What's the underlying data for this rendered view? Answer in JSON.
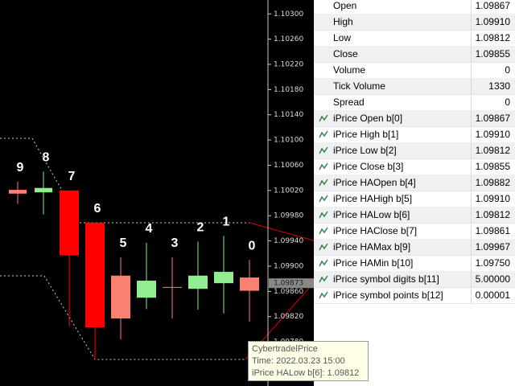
{
  "price_axis": {
    "ylim": [
      1.0971,
      1.10322
    ],
    "ticks": [
      {
        "value": 1.103,
        "label": "1.10300"
      },
      {
        "value": 1.1026,
        "label": "1.10260"
      },
      {
        "value": 1.1022,
        "label": "1.10220"
      },
      {
        "value": 1.1018,
        "label": "1.10180"
      },
      {
        "value": 1.1014,
        "label": "1.10140"
      },
      {
        "value": 1.101,
        "label": "1.10100"
      },
      {
        "value": 1.1006,
        "label": "1.10060"
      },
      {
        "value": 1.1002,
        "label": "1.10020"
      },
      {
        "value": 1.0998,
        "label": "1.09980"
      },
      {
        "value": 1.0994,
        "label": "1.09940"
      },
      {
        "value": 1.099,
        "label": "1.09900"
      },
      {
        "value": 1.0986,
        "label": "1.09860"
      },
      {
        "value": 1.0982,
        "label": "1.09820"
      },
      {
        "value": 1.0978,
        "label": "1.09780"
      }
    ],
    "current_price": {
      "value": 1.09873,
      "label": "1.09873"
    }
  },
  "candles": [
    {
      "label": "9",
      "open": 1.10021,
      "high": 1.10034,
      "low": 1.09999,
      "close": 1.10015
    },
    {
      "label": "8",
      "open": 1.10017,
      "high": 1.1005,
      "low": 1.09982,
      "close": 1.10024
    },
    {
      "label": "7",
      "open": 1.1002,
      "high": 1.1002,
      "low": 1.09804,
      "close": 1.09917
    },
    {
      "label": "6",
      "open": 1.09969,
      "high": 1.09969,
      "low": 1.09752,
      "close": 1.09803
    },
    {
      "label": "5",
      "open": 1.09885,
      "high": 1.09914,
      "low": 1.09784,
      "close": 1.09817
    },
    {
      "label": "4",
      "open": 1.0985,
      "high": 1.09937,
      "low": 1.09832,
      "close": 1.09877
    },
    {
      "label": "3",
      "open": 1.09867,
      "high": 1.09914,
      "low": 1.09817,
      "close": 1.09866
    },
    {
      "label": "2",
      "open": 1.09864,
      "high": 1.09939,
      "low": 1.09831,
      "close": 1.09885
    },
    {
      "label": "1",
      "open": 1.09873,
      "high": 1.09948,
      "low": 1.09825,
      "close": 1.09891
    },
    {
      "label": "0",
      "open": 1.09882,
      "high": 1.0991,
      "low": 1.09812,
      "close": 1.09861
    }
  ],
  "data_window": {
    "rows": [
      [
        "Open",
        "1.09867"
      ],
      [
        "High",
        "1.09910"
      ],
      [
        "Low",
        "1.09812"
      ],
      [
        "Close",
        "1.09855"
      ],
      [
        "Volume",
        "0"
      ],
      [
        "Tick Volume",
        "1330"
      ],
      [
        "Spread",
        "0"
      ],
      [
        "iPrice Open b[0]",
        "1.09867"
      ],
      [
        "iPrice High b[1]",
        "1.09910"
      ],
      [
        "iPrice Low b[2]",
        "1.09812"
      ],
      [
        "iPrice Close b[3]",
        "1.09855"
      ],
      [
        "iPrice HAOpen b[4]",
        "1.09882"
      ],
      [
        "iPrice HAHigh b[5]",
        "1.09910"
      ],
      [
        "iPrice HALow b[6]",
        "1.09812"
      ],
      [
        "iPrice HAClose b[7]",
        "1.09861"
      ],
      [
        "iPrice HAMax b[9]",
        "1.09967"
      ],
      [
        "iPrice HAMin b[10]",
        "1.09750"
      ],
      [
        "iPrice symbol digits b[11]",
        "5.00000"
      ],
      [
        "iPrice symbol points b[12]",
        "0.00001"
      ]
    ]
  },
  "tooltip": {
    "lines": [
      "CybertradelPrice",
      "Time: 2022.03.23 15:00",
      "iPrice HALow b[6]: 1.09812"
    ]
  }
}
